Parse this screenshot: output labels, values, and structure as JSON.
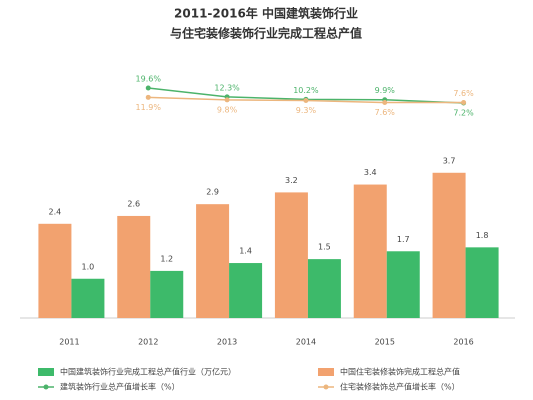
{
  "chart_data": {
    "type": "bar",
    "title": "2011-2016年 中国建筑装饰行业",
    "subtitle": "与住宅装修装饰行业完成工程总产值",
    "categories": [
      "2011",
      "2012",
      "2013",
      "2014",
      "2015",
      "2016"
    ],
    "ylim": [
      0,
      4
    ],
    "y2lim": [
      0,
      25
    ],
    "series": [
      {
        "name": "中国住宅装修装饰完成工程总产值",
        "color": "#f2a26f",
        "values": [
          2.4,
          2.6,
          2.9,
          3.2,
          3.4,
          3.7
        ],
        "value_labels": [
          "2.4",
          "2.6",
          "2.9",
          "3.2",
          "3.4",
          "3.7"
        ]
      },
      {
        "name": "中国建筑装饰行业完成工程总产值行业（万亿元）",
        "color": "#3dba6a",
        "values": [
          1.0,
          1.2,
          1.4,
          1.5,
          1.7,
          1.8
        ],
        "value_labels": [
          "1.0",
          "1.2",
          "1.4",
          "1.5",
          "1.7",
          "1.8"
        ]
      },
      {
        "name": "建筑装饰行业总产值增长率（%）",
        "type": "line",
        "axis": "y2",
        "color": "#4cb36a",
        "values": [
          null,
          19.6,
          12.3,
          10.2,
          9.9,
          7.2
        ],
        "value_labels": [
          null,
          "19.6%",
          "12.3%",
          "10.2%",
          "9.9%",
          "7.2%"
        ]
      },
      {
        "name": "住宅装修装饰总产值增长率（%）",
        "type": "line",
        "axis": "y2",
        "color": "#ecb67e",
        "values": [
          null,
          11.9,
          9.8,
          9.3,
          7.6,
          7.6
        ],
        "value_labels": [
          null,
          "11.9%",
          "9.8%",
          "9.3%",
          "7.6%",
          "7.6%"
        ]
      }
    ]
  }
}
